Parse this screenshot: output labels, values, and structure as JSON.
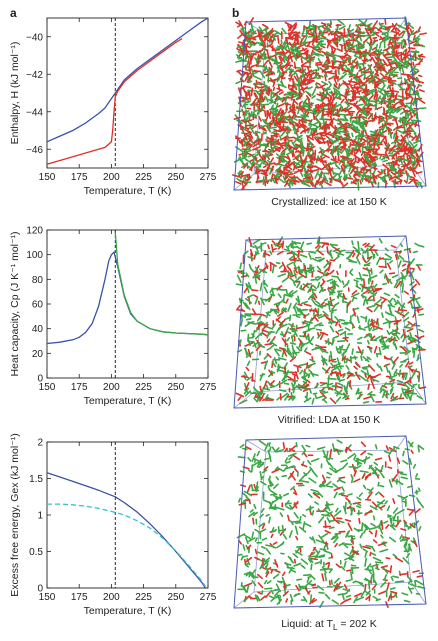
{
  "panels": {
    "a": "a",
    "b": "b"
  },
  "colors": {
    "blue": "#3a52a8",
    "red": "#e0302a",
    "green": "#39a845",
    "cyan": "#35c0c8",
    "box": "#4a5bb0"
  },
  "chart_data": [
    {
      "type": "line",
      "xlabel": "Temperature, T (K)",
      "ylabel": "Enthalpy, H (kJ mol⁻¹)",
      "xlim": [
        150,
        275
      ],
      "ylim": [
        -47,
        -39
      ],
      "xticks": [
        "150",
        "175",
        "200",
        "225",
        "250",
        "275"
      ],
      "yticks": [
        "-40",
        "-42",
        "-44",
        "-46"
      ],
      "vline": 203,
      "series": [
        {
          "color": "#3a52a8",
          "x": [
            150,
            160,
            170,
            180,
            190,
            195,
            200,
            203,
            210,
            220,
            230,
            240,
            250,
            260,
            270,
            275
          ],
          "y": [
            -45.6,
            -45.3,
            -45.0,
            -44.6,
            -44.1,
            -43.8,
            -43.3,
            -43.0,
            -42.3,
            -41.7,
            -41.2,
            -40.7,
            -40.2,
            -39.7,
            -39.2,
            -39.0
          ]
        },
        {
          "color": "#e0302a",
          "x": [
            150,
            160,
            170,
            180,
            190,
            195,
            200,
            201,
            202,
            203,
            205,
            210,
            220,
            230,
            240,
            250,
            255
          ],
          "y": [
            -46.8,
            -46.6,
            -46.4,
            -46.2,
            -46.0,
            -45.9,
            -45.6,
            -45.0,
            -44.0,
            -43.2,
            -42.9,
            -42.4,
            -41.8,
            -41.3,
            -40.8,
            -40.3,
            -40.1
          ]
        }
      ]
    },
    {
      "type": "line",
      "xlabel": "Temperature, T (K)",
      "ylabel": "Heat capacity, Cp (J K⁻¹ mol⁻¹)",
      "xlim": [
        150,
        275
      ],
      "ylim": [
        0,
        120
      ],
      "xticks": [
        "150",
        "175",
        "200",
        "225",
        "250",
        "275"
      ],
      "yticks": [
        "0",
        "20",
        "40",
        "60",
        "80",
        "100",
        "120"
      ],
      "vline": 203,
      "series": [
        {
          "color": "#3a52a8",
          "x": [
            150,
            160,
            170,
            175,
            180,
            185,
            190,
            195,
            198,
            200,
            202,
            205,
            210,
            215,
            220,
            230,
            240,
            250,
            260,
            270,
            275
          ],
          "y": [
            28,
            29,
            31,
            33,
            37,
            44,
            58,
            80,
            95,
            100,
            102,
            90,
            66,
            52,
            46,
            40,
            37.5,
            36.5,
            36,
            35.5,
            35
          ]
        },
        {
          "color": "#39a845",
          "x": [
            203,
            205,
            210,
            215,
            220,
            230,
            240,
            250,
            260,
            270,
            275
          ],
          "y": [
            118,
            92,
            67,
            53,
            46,
            40,
            37.5,
            36.5,
            36,
            35.5,
            35
          ]
        }
      ]
    },
    {
      "type": "line",
      "xlabel": "Temperature, T (K)",
      "ylabel": "Excess free energy, Gex (kJ mol⁻¹)",
      "xlim": [
        150,
        275
      ],
      "ylim": [
        0,
        2
      ],
      "xticks": [
        "150",
        "175",
        "200",
        "225",
        "250",
        "275"
      ],
      "yticks": [
        "0",
        "0.5",
        "1",
        "1.5",
        "2"
      ],
      "vline": 203,
      "series": [
        {
          "color": "#3a52a8",
          "x": [
            150,
            160,
            170,
            180,
            190,
            200,
            203,
            210,
            220,
            230,
            240,
            250,
            260,
            270,
            273
          ],
          "y": [
            1.58,
            1.52,
            1.46,
            1.4,
            1.34,
            1.27,
            1.25,
            1.17,
            1.04,
            0.88,
            0.7,
            0.5,
            0.29,
            0.08,
            0.0
          ]
        },
        {
          "color": "#35c0c8",
          "dashed": true,
          "x": [
            150,
            160,
            170,
            180,
            190,
            200,
            210,
            220,
            230,
            240,
            250,
            260,
            270,
            273
          ],
          "y": [
            1.15,
            1.15,
            1.14,
            1.12,
            1.09,
            1.05,
            1.0,
            0.92,
            0.82,
            0.68,
            0.51,
            0.31,
            0.1,
            0.02
          ]
        }
      ]
    }
  ],
  "captions": {
    "crystallized": "Crystallized: ice at 150 K",
    "vitrified": "Vitrified: LDA at 150 K",
    "liquid": "Liquid: at T",
    "liquid_sub": "L",
    "liquid_rest": " = 202 K"
  }
}
